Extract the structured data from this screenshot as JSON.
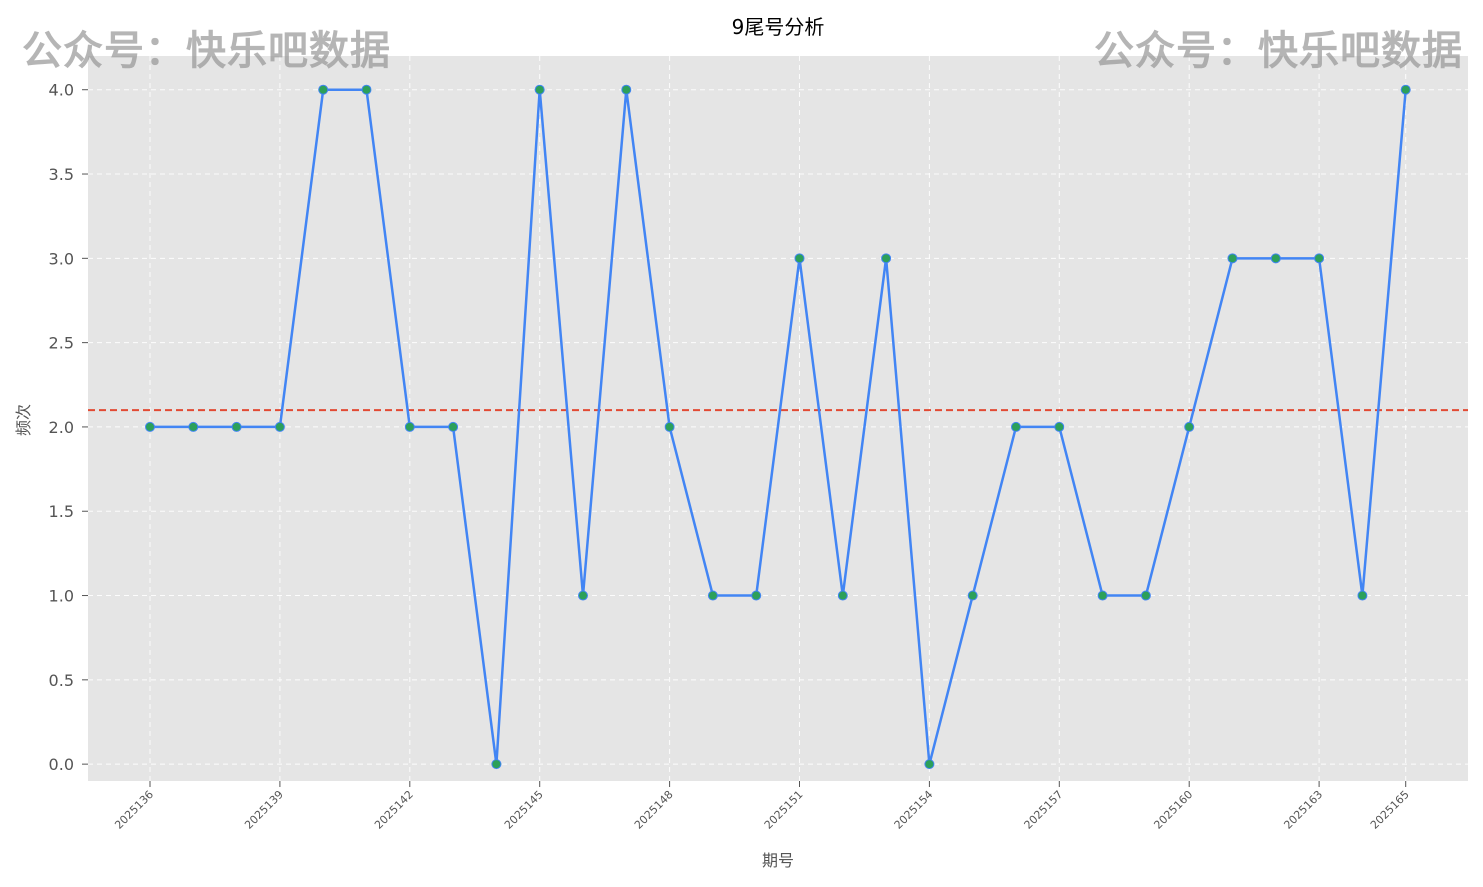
{
  "watermark": {
    "text": "公众号：快乐吧数据"
  },
  "chart_data": {
    "type": "line",
    "title": "9尾号分析",
    "xlabel": "期号",
    "ylabel": "频次",
    "x": [
      2025136,
      2025137,
      2025138,
      2025139,
      2025140,
      2025141,
      2025142,
      2025143,
      2025144,
      2025145,
      2025146,
      2025147,
      2025148,
      2025149,
      2025150,
      2025151,
      2025152,
      2025153,
      2025154,
      2025155,
      2025156,
      2025157,
      2025158,
      2025159,
      2025160,
      2025161,
      2025162,
      2025163,
      2025164,
      2025165
    ],
    "values": [
      2,
      2,
      2,
      2,
      4,
      4,
      2,
      2,
      0,
      4,
      1,
      4,
      2,
      1,
      1,
      3,
      1,
      3,
      0,
      1,
      2,
      2,
      1,
      1,
      2,
      3,
      3,
      3,
      1,
      4
    ],
    "x_ticks": [
      "2025136",
      "2025139",
      "2025142",
      "2025145",
      "2025148",
      "2025151",
      "2025154",
      "2025157",
      "2025160",
      "2025163",
      "2025165"
    ],
    "y_ticks": [
      "0.0",
      "0.5",
      "1.0",
      "1.5",
      "2.0",
      "2.5",
      "3.0",
      "3.5",
      "4.0"
    ],
    "ylim": [
      -0.1,
      4.2
    ],
    "mean_line": 2.1,
    "grid": true,
    "colors": {
      "line": "#4285f4",
      "marker": "#2ca05a",
      "mean_line": "#e24a33",
      "plot_bg": "#e5e5e5",
      "grid": "#ffffff"
    }
  }
}
